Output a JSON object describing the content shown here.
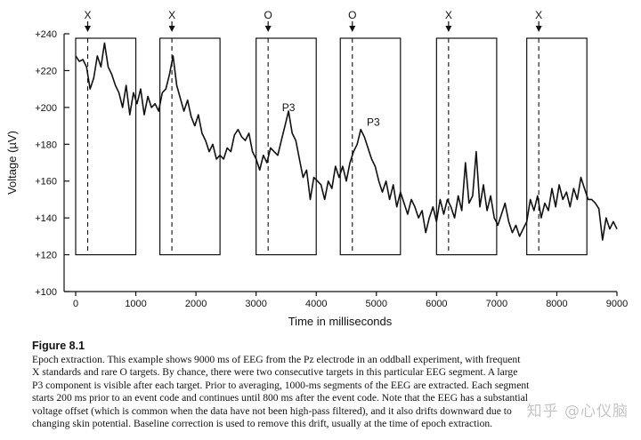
{
  "chart_data": {
    "type": "line",
    "xlabel": "Time in milliseconds",
    "ylabel": "Voltage (µV)",
    "xlim": [
      0,
      9000
    ],
    "ylim": [
      100,
      240
    ],
    "x_ticks": [
      0,
      1000,
      2000,
      3000,
      4000,
      5000,
      6000,
      7000,
      8000,
      9000
    ],
    "y_ticks": [
      100,
      120,
      140,
      160,
      180,
      200,
      220,
      240
    ],
    "y_tick_labels": [
      "+100",
      "+120",
      "+140",
      "+160",
      "+180",
      "+200",
      "+220",
      "+240"
    ],
    "event_codes": [
      {
        "label": "X",
        "time": 200
      },
      {
        "label": "X",
        "time": 1600
      },
      {
        "label": "O",
        "time": 3200
      },
      {
        "label": "O",
        "time": 4600
      },
      {
        "label": "X",
        "time": 6200
      },
      {
        "label": "X",
        "time": 7700
      }
    ],
    "epoch_windows": [
      {
        "start": 0,
        "end": 1000
      },
      {
        "start": 1400,
        "end": 2400
      },
      {
        "start": 3000,
        "end": 4000
      },
      {
        "start": 4400,
        "end": 5400
      },
      {
        "start": 6000,
        "end": 7000
      },
      {
        "start": 7500,
        "end": 8500
      }
    ],
    "annotations": [
      {
        "text": "P3",
        "x": 3540,
        "y": 198
      },
      {
        "text": "P3",
        "x": 4950,
        "y": 190
      }
    ],
    "series": [
      {
        "x": [
          0,
          60,
          120,
          180,
          240,
          300,
          360,
          420,
          480,
          540,
          600,
          660,
          720,
          780,
          840,
          900,
          960,
          1020,
          1080,
          1140,
          1200,
          1260,
          1320,
          1380,
          1440,
          1500,
          1560,
          1620,
          1680,
          1740,
          1800,
          1860,
          1920,
          1980,
          2040,
          2100,
          2160,
          2220,
          2280,
          2340,
          2400,
          2460,
          2520,
          2580,
          2640,
          2700,
          2760,
          2820,
          2880,
          2940,
          3000,
          3060,
          3120,
          3180,
          3240,
          3300,
          3360,
          3420,
          3480,
          3540,
          3600,
          3660,
          3720,
          3780,
          3840,
          3900,
          3960,
          4020,
          4080,
          4140,
          4200,
          4260,
          4320,
          4380,
          4440,
          4500,
          4560,
          4620,
          4680,
          4740,
          4800,
          4860,
          4920,
          4980,
          5040,
          5100,
          5160,
          5220,
          5280,
          5340,
          5400,
          5460,
          5520,
          5580,
          5640,
          5700,
          5760,
          5820,
          5880,
          5940,
          6000,
          6060,
          6120,
          6180,
          6240,
          6300,
          6360,
          6420,
          6480,
          6540,
          6600,
          6660,
          6720,
          6780,
          6840,
          6900,
          6960,
          7020,
          7080,
          7140,
          7200,
          7260,
          7320,
          7380,
          7440,
          7500,
          7560,
          7620,
          7680,
          7740,
          7800,
          7860,
          7920,
          7980,
          8040,
          8100,
          8160,
          8220,
          8280,
          8340,
          8400,
          8460,
          8520,
          8580,
          8640,
          8700,
          8760,
          8820,
          8880,
          8940,
          9000
        ],
        "values": [
          228,
          225,
          226,
          222,
          210,
          216,
          228,
          222,
          235,
          222,
          218,
          212,
          208,
          200,
          212,
          196,
          208,
          202,
          210,
          196,
          206,
          200,
          202,
          198,
          208,
          210,
          218,
          228,
          212,
          205,
          198,
          204,
          195,
          190,
          196,
          186,
          182,
          176,
          180,
          172,
          174,
          172,
          178,
          176,
          185,
          188,
          184,
          182,
          186,
          176,
          172,
          166,
          174,
          170,
          178,
          176,
          174,
          182,
          190,
          198,
          186,
          182,
          172,
          162,
          166,
          150,
          162,
          160,
          158,
          150,
          160,
          156,
          168,
          162,
          168,
          160,
          170,
          176,
          180,
          188,
          184,
          178,
          172,
          168,
          160,
          154,
          160,
          150,
          158,
          146,
          154,
          148,
          142,
          150,
          146,
          140,
          144,
          132,
          140,
          146,
          138,
          150,
          142,
          150,
          146,
          140,
          152,
          144,
          170,
          148,
          152,
          176,
          146,
          158,
          144,
          152,
          140,
          136,
          142,
          148,
          138,
          132,
          136,
          130,
          134,
          138,
          150,
          144,
          152,
          140,
          148,
          144,
          156,
          146,
          158,
          150,
          154,
          146,
          156,
          150,
          162,
          156,
          150,
          150,
          148,
          145,
          128,
          140,
          134,
          138,
          134
        ]
      }
    ]
  },
  "caption": {
    "label": "Figure 8.1",
    "lines": [
      "Epoch extraction. This example shows 9000 ms of EEG from the Pz electrode in an oddball experiment, with frequent",
      "X standards and rare O targets. By chance, there were two consecutive targets in this particular EEG segment. A large",
      "P3 component is visible after each target. Prior to averaging, 1000-ms segments of the EEG are extracted. Each segment",
      "starts 200 ms prior to an event code and continues until 800 ms after the event code. Note that the EEG has a substantial",
      "voltage offset (which is common when the data have not been high-pass filtered), and it also drifts downward due to",
      "changing skin potential. Baseline correction is used to remove this drift, usually at the time of epoch extraction."
    ]
  },
  "watermark": "知乎 @心仪脑",
  "colors": {
    "line": "#111111",
    "background": "#ffffff"
  }
}
